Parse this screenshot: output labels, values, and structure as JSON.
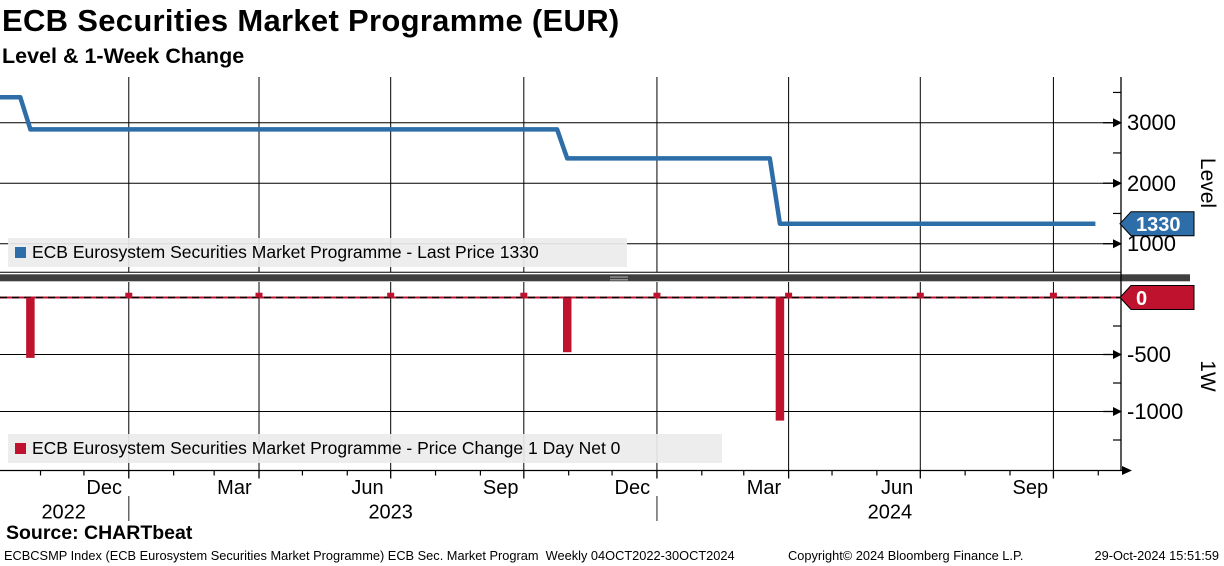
{
  "header": {
    "title": "ECB Securities Market Programme (EUR)",
    "subtitle": "Level & 1-Week Change"
  },
  "legends": {
    "level": {
      "marker_color": "#2d6da8",
      "label": "ECB Eurosystem Securities Market Programme - Last Price 1330"
    },
    "change": {
      "marker_color": "#bf122f",
      "label": "ECB Eurosystem Securities Market Programme - Price Change 1 Day Net 0"
    }
  },
  "axes": {
    "level": {
      "title": "Level",
      "tick_labels": [
        "3000",
        "2000",
        "1000"
      ],
      "last_badge": "1330"
    },
    "change": {
      "title": "1W",
      "tick_labels": [
        "-500",
        "-1000"
      ],
      "last_badge": "0"
    },
    "x": {
      "month_labels": [
        {
          "label": "Dec",
          "date": "2022-12-15"
        },
        {
          "label": "Mar",
          "date": "2023-03-15"
        },
        {
          "label": "Jun",
          "date": "2023-06-15"
        },
        {
          "label": "Sep",
          "date": "2023-09-15"
        },
        {
          "label": "Dec",
          "date": "2023-12-15"
        },
        {
          "label": "Mar",
          "date": "2024-03-15"
        },
        {
          "label": "Jun",
          "date": "2024-06-15"
        },
        {
          "label": "Sep",
          "date": "2024-09-15"
        }
      ],
      "year_labels": [
        {
          "label": "2022",
          "date": "2022-11-17"
        },
        {
          "label": "2023",
          "date": "2023-07-01"
        },
        {
          "label": "2024",
          "date": "2024-06-10"
        }
      ]
    }
  },
  "footer": {
    "source": "Source: CHARTbeat",
    "left": "ECBCSMP Index (ECB Eurosystem Securities Market Programme) ECB Sec. Market Program  Weekly 04OCT2022-30OCT2024",
    "center": "Copyright© 2024 Bloomberg Finance L.P.",
    "right": "29-Oct-2024 15:51:59"
  },
  "colors": {
    "line_blue": "#2d6da8",
    "bar_red": "#bf122f",
    "divider": "#3f3f3f",
    "grid": "#000000",
    "legend_bg": "#ececec"
  },
  "chart_data": [
    {
      "type": "line",
      "panel": "Level",
      "series_name": "ECB Eurosystem Securities Market Programme - Last Price",
      "color": "#2d6da8",
      "xlim": [
        "2022-10-04",
        "2024-10-30"
      ],
      "ylim": [
        530,
        3760
      ],
      "yticks": [
        3000,
        2000,
        1000
      ],
      "yticks_minor": [
        3500,
        2500,
        1500
      ],
      "grid": true,
      "last_value": 1330,
      "points": [
        [
          "2022-10-04",
          3420
        ],
        [
          "2022-10-18",
          3420
        ],
        [
          "2022-10-25",
          2890
        ],
        [
          "2023-10-24",
          2890
        ],
        [
          "2023-10-31",
          2410
        ],
        [
          "2024-03-19",
          2410
        ],
        [
          "2024-03-26",
          1330
        ],
        [
          "2024-10-30",
          1330
        ]
      ]
    },
    {
      "type": "bar",
      "panel": "1W",
      "series_name": "ECB Eurosystem Securities Market Programme - Price Change 1 Day Net",
      "color": "#bf122f",
      "xlim": [
        "2022-10-04",
        "2024-10-30"
      ],
      "ylim": [
        -1520,
        140
      ],
      "yticks": [
        0,
        -500,
        -1000
      ],
      "yticks_minor": [
        -250,
        -750,
        -1250
      ],
      "zero_line_style": "dashed-red-black",
      "baseline_weeks_value": 0,
      "last_value": 0,
      "bars": [
        [
          "2022-10-25",
          -530
        ],
        [
          "2023-10-31",
          -480
        ],
        [
          "2024-03-26",
          -1080
        ]
      ]
    }
  ]
}
